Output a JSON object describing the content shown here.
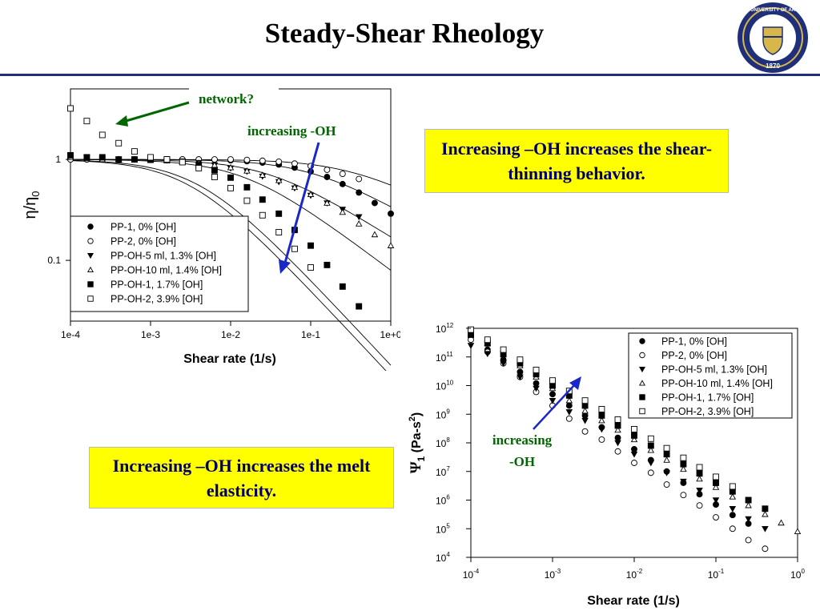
{
  "slide": {
    "title": "Steady-Shear Rheology",
    "accent_color": "#1f2f7a",
    "logo": {
      "icon": "university-seal-icon",
      "ring_text": "THE UNIVERSITY OF AKRON",
      "year": "1870",
      "ring_color": "#1f2f7a",
      "gold_color": "#d8b74a"
    }
  },
  "callouts": {
    "shear_thinning": "Increasing –OH increases the shear-thinning behavior.",
    "elasticity": "Increasing –OH increases the melt elasticity.",
    "background_color": "#ffff00",
    "text_color": "#000066"
  },
  "chart_data": [
    {
      "type": "scatter",
      "title": "",
      "xlabel": "Shear rate (1/s)",
      "ylabel_main": "η/η",
      "ylabel_sub": "0",
      "xscale": "log",
      "yscale": "log",
      "xlim": [
        0.0001,
        1
      ],
      "ylim": [
        0.025,
        5
      ],
      "xticks": [
        {
          "value": 0.0001,
          "label": "1e-4"
        },
        {
          "value": 0.001,
          "label": "1e-3"
        },
        {
          "value": 0.01,
          "label": "1e-2"
        },
        {
          "value": 0.1,
          "label": "1e-1"
        },
        {
          "value": 1,
          "label": "1e+0"
        }
      ],
      "yticks": [
        {
          "value": 1,
          "label": "1"
        },
        {
          "value": 0.1,
          "label": "0.1"
        }
      ],
      "legend_position": "bottom-left",
      "annotations": {
        "network": "network?",
        "increasing": "increasing -OH"
      },
      "series": [
        {
          "name": "PP-1, 0% [OH]",
          "marker": "filled-circle",
          "x": [
            0.0001,
            0.00016,
            0.00025,
            0.0004,
            0.00063,
            0.001,
            0.0016,
            0.0025,
            0.004,
            0.0063,
            0.01,
            0.016,
            0.025,
            0.04,
            0.063,
            0.1,
            0.16,
            0.25,
            0.4,
            0.63,
            1.0
          ],
          "y": [
            1.0,
            1.0,
            1.0,
            1.0,
            1.0,
            1.0,
            1.0,
            1.0,
            1.0,
            0.99,
            0.98,
            0.96,
            0.93,
            0.89,
            0.83,
            0.76,
            0.67,
            0.57,
            0.47,
            0.37,
            0.29
          ],
          "fit": {
            "eta_ratio_zero": 1.0,
            "critical_rate": 0.1,
            "index": 0.45
          }
        },
        {
          "name": "PP-2, 0% [OH]",
          "marker": "open-circle",
          "x": [
            0.0001,
            0.00016,
            0.00025,
            0.0004,
            0.00063,
            0.001,
            0.0016,
            0.0025,
            0.004,
            0.0063,
            0.01,
            0.016,
            0.025,
            0.04,
            0.063,
            0.1,
            0.16,
            0.25,
            0.4
          ],
          "y": [
            1.0,
            1.0,
            1.0,
            1.0,
            1.0,
            1.0,
            1.0,
            1.0,
            1.0,
            1.0,
            1.0,
            0.99,
            0.97,
            0.95,
            0.91,
            0.86,
            0.79,
            0.72,
            0.64
          ],
          "fit": {
            "eta_ratio_zero": 1.0,
            "critical_rate": 0.3,
            "index": 0.4
          }
        },
        {
          "name": "PP-OH-5 ml, 1.3% [OH]",
          "marker": "filled-triangle-down",
          "x": [
            0.0001,
            0.00016,
            0.00025,
            0.0004,
            0.00063,
            0.001,
            0.0016,
            0.0025,
            0.004,
            0.0063,
            0.01,
            0.016,
            0.025,
            0.04,
            0.063,
            0.1,
            0.16,
            0.25,
            0.4
          ],
          "y": [
            1.1,
            1.05,
            1.0,
            1.0,
            1.0,
            0.99,
            0.98,
            0.96,
            0.93,
            0.88,
            0.82,
            0.76,
            0.68,
            0.6,
            0.52,
            0.44,
            0.37,
            0.32,
            0.27
          ],
          "fit": {
            "eta_ratio_zero": 1.0,
            "critical_rate": 0.03,
            "index": 0.5
          }
        },
        {
          "name": "PP-OH-10 ml, 1.4% [OH]",
          "marker": "open-triangle-up",
          "x": [
            0.0001,
            0.00016,
            0.00025,
            0.0004,
            0.00063,
            0.001,
            0.0016,
            0.0025,
            0.004,
            0.0063,
            0.01,
            0.016,
            0.025,
            0.04,
            0.063,
            0.1,
            0.16,
            0.25,
            0.4,
            0.63,
            1.0
          ],
          "y": [
            1.05,
            1.02,
            1.0,
            1.0,
            0.99,
            0.98,
            0.97,
            0.95,
            0.92,
            0.88,
            0.83,
            0.77,
            0.7,
            0.62,
            0.53,
            0.45,
            0.37,
            0.3,
            0.23,
            0.18,
            0.14
          ],
          "fit": {
            "eta_ratio_zero": 1.0,
            "critical_rate": 0.015,
            "index": 0.6
          }
        },
        {
          "name": "PP-OH-1, 1.7% [OH]",
          "marker": "filled-square",
          "x": [
            0.0001,
            0.00016,
            0.00025,
            0.0004,
            0.00063,
            0.001,
            0.0016,
            0.0025,
            0.004,
            0.0063,
            0.01,
            0.016,
            0.025,
            0.04,
            0.063,
            0.1,
            0.16,
            0.25,
            0.4
          ],
          "y": [
            1.1,
            1.05,
            1.05,
            1.0,
            1.0,
            1.0,
            1.0,
            0.95,
            0.88,
            0.78,
            0.66,
            0.53,
            0.4,
            0.29,
            0.2,
            0.14,
            0.09,
            0.055,
            0.035
          ],
          "fit": {
            "eta_ratio_zero": 1.0,
            "critical_rate": 0.003,
            "index": 0.85
          }
        },
        {
          "name": "PP-OH-2, 3.9% [OH]",
          "marker": "open-square",
          "x": [
            0.0001,
            0.00016,
            0.00025,
            0.0004,
            0.00063,
            0.001,
            0.0016,
            0.0025,
            0.004,
            0.0063,
            0.01,
            0.016,
            0.025,
            0.04,
            0.063,
            0.1
          ],
          "y": [
            3.2,
            2.4,
            1.75,
            1.45,
            1.2,
            1.05,
            1.0,
            0.94,
            0.82,
            0.67,
            0.52,
            0.39,
            0.28,
            0.19,
            0.13,
            0.085
          ],
          "fit": {
            "eta_ratio_zero": 1.0,
            "critical_rate": 0.004,
            "index": 0.85
          }
        }
      ]
    },
    {
      "type": "scatter",
      "title": "",
      "xlabel": "Shear rate (1/s)",
      "ylabel_main": "Ψ",
      "ylabel_sub": "1",
      "ylabel_rest": " (Pa-s",
      "ylabel_sup": "2",
      "ylabel_end": ")",
      "xscale": "log",
      "yscale": "log",
      "xlim": [
        0.0001,
        1
      ],
      "ylim": [
        10000,
        1000000000000
      ],
      "xticks": [
        {
          "value": 0.0001,
          "base": "10",
          "exp": "-4"
        },
        {
          "value": 0.001,
          "base": "10",
          "exp": "-3"
        },
        {
          "value": 0.01,
          "base": "10",
          "exp": "-2"
        },
        {
          "value": 0.1,
          "base": "10",
          "exp": "-1"
        },
        {
          "value": 1,
          "base": "10",
          "exp": "0"
        }
      ],
      "yticks": [
        {
          "value": 1000000000000,
          "base": "10",
          "exp": "12"
        },
        {
          "value": 100000000000,
          "base": "10",
          "exp": "11"
        },
        {
          "value": 10000000000,
          "base": "10",
          "exp": "10"
        },
        {
          "value": 1000000000,
          "base": "10",
          "exp": "9"
        },
        {
          "value": 100000000,
          "base": "10",
          "exp": "8"
        },
        {
          "value": 10000000,
          "base": "10",
          "exp": "7"
        },
        {
          "value": 1000000,
          "base": "10",
          "exp": "6"
        },
        {
          "value": 100000,
          "base": "10",
          "exp": "5"
        },
        {
          "value": 10000,
          "base": "10",
          "exp": "4"
        }
      ],
      "legend_position": "top-right",
      "annotations": {
        "increasing_line1": "increasing",
        "increasing_line2": "-OH"
      },
      "series": [
        {
          "name": "PP-1, 0% [OH]",
          "marker": "filled-circle",
          "x": [
            0.0001,
            0.00016,
            0.00025,
            0.0004,
            0.00063,
            0.001,
            0.0016,
            0.0025,
            0.004,
            0.0063,
            0.01,
            0.016,
            0.025,
            0.04,
            0.063,
            0.1,
            0.16,
            0.25
          ],
          "y": [
            500000000000,
            180000000000,
            80000000000,
            30000000000,
            12000000000,
            5000000000,
            2000000000,
            900000000,
            350000000,
            150000000,
            60000000,
            25000000,
            10000000,
            4000000,
            1600000,
            700000,
            300000,
            150000
          ]
        },
        {
          "name": "PP-2, 0% [OH]",
          "marker": "open-circle",
          "x": [
            0.0001,
            0.00016,
            0.00025,
            0.0004,
            0.00063,
            0.001,
            0.0016,
            0.0025,
            0.004,
            0.0063,
            0.01,
            0.016,
            0.025,
            0.04,
            0.063,
            0.1,
            0.16,
            0.25,
            0.4
          ],
          "y": [
            400000000000,
            150000000000,
            60000000000,
            20000000000,
            6000000000,
            2000000000,
            700000000,
            250000000,
            130000000,
            50000000,
            20000000,
            9000000,
            3500000,
            1500000,
            650000,
            250000,
            100000,
            40000,
            20000
          ]
        },
        {
          "name": "PP-OH-5 ml, 1.3% [OH]",
          "marker": "filled-triangle-down",
          "x": [
            0.0001,
            0.00016,
            0.00025,
            0.0004,
            0.00063,
            0.001,
            0.0016,
            0.0025,
            0.004,
            0.0063,
            0.01,
            0.016,
            0.025,
            0.04,
            0.063,
            0.1,
            0.16,
            0.25,
            0.4
          ],
          "y": [
            250000000000,
            130000000000,
            60000000000,
            20000000000,
            8000000000,
            3000000000,
            1200000000,
            600000000,
            300000000,
            100000000,
            40000000,
            20000000,
            9000000,
            4500000,
            2200000,
            1000000,
            500000,
            220000,
            100000
          ]
        },
        {
          "name": "PP-OH-10 ml, 1.4% [OH]",
          "marker": "open-triangle-up",
          "x": [
            0.0001,
            0.00016,
            0.00025,
            0.0004,
            0.00063,
            0.001,
            0.0016,
            0.0025,
            0.004,
            0.0063,
            0.01,
            0.016,
            0.025,
            0.04,
            0.063,
            0.1,
            0.16,
            0.25,
            0.4,
            0.63,
            1.0
          ],
          "y": [
            700000000000,
            300000000000,
            120000000000,
            50000000000,
            20000000000,
            8000000000,
            3000000000,
            1300000000,
            600000000,
            280000000,
            130000000,
            55000000,
            25000000,
            12000000,
            5500000,
            2800000,
            1300000,
            650000,
            320000,
            160000,
            80000
          ]
        },
        {
          "name": "PP-OH-1, 1.7% [OH]",
          "marker": "filled-square",
          "x": [
            0.0001,
            0.00016,
            0.00025,
            0.0004,
            0.00063,
            0.001,
            0.0016,
            0.0025,
            0.004,
            0.0063,
            0.01,
            0.016,
            0.025,
            0.04,
            0.063,
            0.1,
            0.16,
            0.25,
            0.4
          ],
          "y": [
            600000000000,
            300000000000,
            130000000000,
            60000000000,
            25000000000,
            10000000000,
            4500000000,
            2000000000,
            900000000,
            400000000,
            180000000,
            80000000,
            40000000,
            18000000,
            8500000,
            4000000,
            2000000,
            1000000,
            500000
          ]
        },
        {
          "name": "PP-OH-2, 3.9% [OH]",
          "marker": "open-square",
          "x": [
            0.0001,
            0.00016,
            0.00025,
            0.0004,
            0.00063,
            0.001,
            0.0016,
            0.0025,
            0.004,
            0.0063,
            0.01,
            0.016,
            0.025,
            0.04,
            0.063,
            0.1,
            0.16
          ],
          "y": [
            900000000000,
            400000000000,
            180000000000,
            80000000000,
            35000000000,
            15000000000,
            6500000000,
            3000000000,
            1500000000,
            650000000,
            300000000,
            140000000,
            65000000,
            30000000,
            14000000,
            6500000,
            3000000
          ]
        }
      ]
    }
  ]
}
